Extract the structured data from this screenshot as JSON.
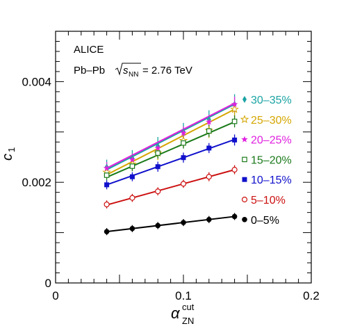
{
  "chart_data": {
    "type": "line",
    "experiment": "ALICE",
    "collision": {
      "system": "Pb–Pb",
      "energy_value": "= 2.76 TeV"
    },
    "xlabel": {
      "base": "α",
      "sup": "cut",
      "sub": "ZN"
    },
    "ylabel": {
      "base": "c",
      "sub": "1"
    },
    "xlim": [
      0,
      0.2
    ],
    "ylim": [
      0,
      0.005
    ],
    "x_ticks": [
      0,
      0.1,
      0.2
    ],
    "x_tick_labels": [
      "0",
      "0.1",
      "0.2"
    ],
    "y_ticks": [
      0,
      0.002,
      0.004
    ],
    "y_tick_labels": [
      "0",
      "0.002",
      "0.004"
    ],
    "legend_position": "right",
    "x": [
      0.04,
      0.06,
      0.08,
      0.1,
      0.12,
      0.14
    ],
    "series": [
      {
        "name": "30–35%",
        "color": "#1aa3a3",
        "marker": "diamond",
        "values": [
          0.0023,
          0.00248,
          0.00272,
          0.003,
          0.00325,
          0.00355
        ],
        "errors": [
          0.00015,
          0.00016,
          0.00018,
          0.00018,
          0.00018,
          0.0002
        ],
        "fit": [
          0.00225,
          0.00355
        ]
      },
      {
        "name": "25–30%",
        "color": "#d4a600",
        "marker": "star-open",
        "values": [
          0.0022,
          0.00236,
          0.00258,
          0.00283,
          0.00303,
          0.00345
        ],
        "errors": [
          0.00012,
          0.00013,
          0.00014,
          0.00014,
          0.00015,
          0.00016
        ],
        "fit": [
          0.00215,
          0.00345
        ]
      },
      {
        "name": "20–25%",
        "color": "#e020e0",
        "marker": "star",
        "values": [
          0.00228,
          0.00245,
          0.00268,
          0.00298,
          0.0032,
          0.00355
        ],
        "errors": [
          0.00012,
          0.00012,
          0.00013,
          0.00013,
          0.00014,
          0.00015
        ],
        "fit": [
          0.00228,
          0.00357
        ]
      },
      {
        "name": "15–20%",
        "color": "#1a7a1a",
        "marker": "square-open",
        "values": [
          0.00214,
          0.00232,
          0.00258,
          0.00278,
          0.00302,
          0.00321
        ],
        "errors": [
          0.0001,
          0.0001,
          0.00011,
          0.00011,
          0.00012,
          0.00012
        ],
        "fit": [
          0.0021,
          0.0032
        ]
      },
      {
        "name": "10–15%",
        "color": "#1010cc",
        "marker": "square",
        "values": [
          0.00195,
          0.00211,
          0.00231,
          0.00249,
          0.00268,
          0.00284
        ],
        "errors": [
          9e-05,
          9e-05,
          0.0001,
          0.0001,
          0.0001,
          0.00011
        ],
        "fit": [
          0.00195,
          0.00285
        ]
      },
      {
        "name": "5–10%",
        "color": "#cc1010",
        "marker": "circle-open",
        "values": [
          0.00156,
          0.00169,
          0.00182,
          0.00197,
          0.00211,
          0.00225
        ],
        "errors": [
          8e-05,
          8e-05,
          8e-05,
          8e-05,
          9e-05,
          9e-05
        ],
        "fit": [
          0.00155,
          0.00225
        ]
      },
      {
        "name": "0–5%",
        "color": "#000000",
        "marker": "circle",
        "values": [
          0.00102,
          0.00108,
          0.00114,
          0.0012,
          0.00126,
          0.00132
        ],
        "errors": [
          7e-05,
          7e-05,
          7e-05,
          7e-05,
          7e-05,
          7e-05
        ],
        "fit": [
          0.00102,
          0.00132
        ]
      }
    ]
  }
}
